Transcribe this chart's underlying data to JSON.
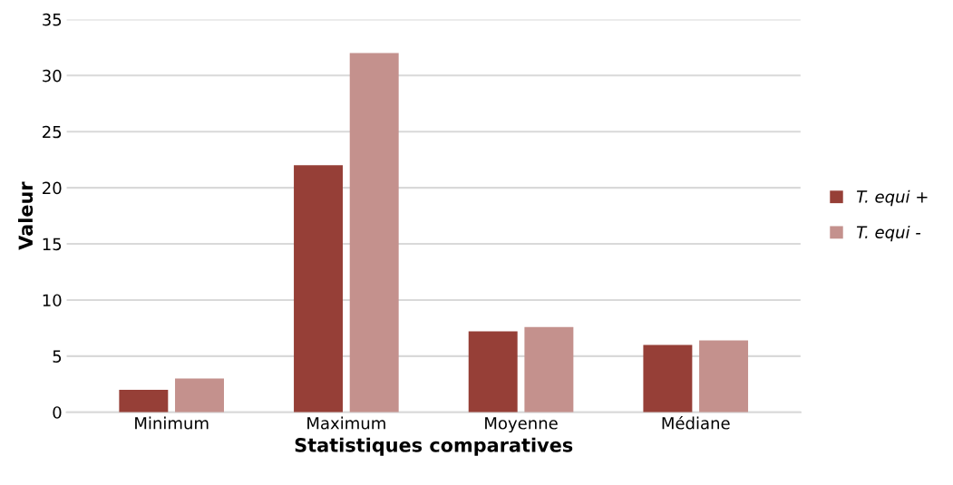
{
  "chart_data": {
    "type": "bar",
    "xlabel": "Statistiques comparatives",
    "ylabel": "Valeur",
    "categories": [
      "Minimum",
      "Maximum",
      "Moyenne",
      "Médiane"
    ],
    "series": [
      {
        "name": "T. equi +",
        "color": "#963f37",
        "values": [
          2,
          22,
          7.2,
          6.0
        ]
      },
      {
        "name": "T. equi -",
        "color": "#c4918d",
        "values": [
          3,
          32,
          7.6,
          6.4
        ]
      }
    ],
    "ylim": [
      0,
      35
    ],
    "yticks": [
      0,
      5,
      10,
      15,
      20,
      25,
      30,
      35
    ],
    "grid": "y",
    "legend": "right"
  }
}
